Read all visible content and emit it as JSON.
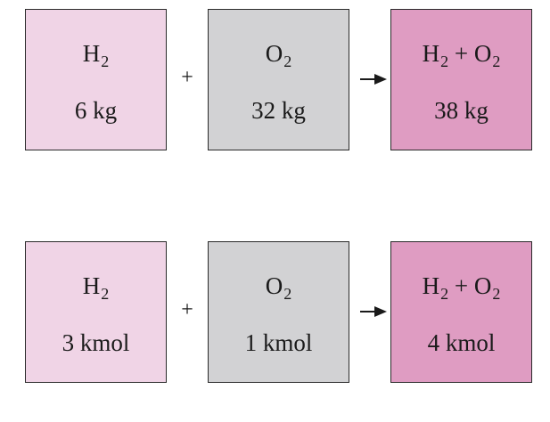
{
  "rows": [
    {
      "h2": {
        "symbol": "H",
        "sub": "2",
        "amount": "6 kg"
      },
      "o2": {
        "symbol": "O",
        "sub": "2",
        "amount": "32 kg"
      },
      "mixture": {
        "symbol1": "H",
        "sub1": "2",
        "operator": " + ",
        "symbol2": "O",
        "sub2": "2",
        "amount": "38 kg"
      },
      "plus": "+"
    },
    {
      "h2": {
        "symbol": "H",
        "sub": "2",
        "amount": "3 kmol"
      },
      "o2": {
        "symbol": "O",
        "sub": "2",
        "amount": "1 kmol"
      },
      "mixture": {
        "symbol1": "H",
        "sub1": "2",
        "operator": " + ",
        "symbol2": "O",
        "sub2": "2",
        "amount": "4 kmol"
      },
      "plus": "+"
    }
  ],
  "colors": {
    "h2_fill": "#f0d4e6",
    "o2_fill": "#d2d2d4",
    "mixture_fill": "#df9cc2",
    "border": "#2a2a2a"
  }
}
